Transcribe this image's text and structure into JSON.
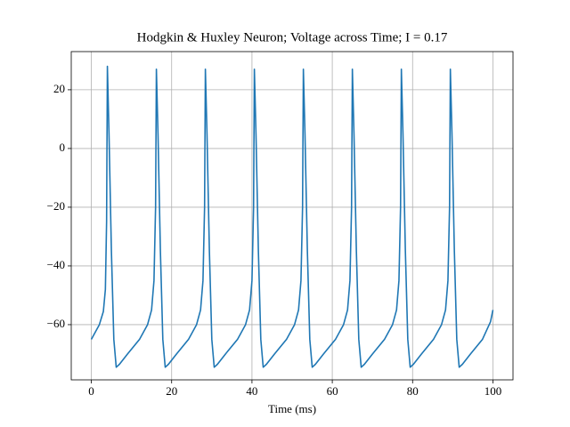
{
  "chart_data": {
    "type": "line",
    "title": "Hodgkin & Huxley Neuron; Voltage across Time; I = 0.17",
    "xlabel": "Time (ms)",
    "color": "#1f77b4",
    "grid": true,
    "xlim": [
      -5,
      105
    ],
    "ylim": [
      -78.8,
      33
    ],
    "xticks": [
      0,
      20,
      40,
      60,
      80,
      100
    ],
    "yticks": [
      {
        "value": -60,
        "label": "−60"
      },
      {
        "value": -40,
        "label": "−40"
      },
      {
        "value": -20,
        "label": "−20"
      },
      0,
      20
    ],
    "x": [
      0,
      1,
      2,
      3,
      3.5,
      3.8,
      4.0,
      4.4,
      5.0,
      5.6,
      6.2,
      7.0,
      9.0,
      12.0,
      14.0,
      15.0,
      15.6,
      16.0,
      16.2,
      16.6,
      17.2,
      17.8,
      18.4,
      19.2,
      21.2,
      24.2,
      26.2,
      27.2,
      27.8,
      28.2,
      28.4,
      28.8,
      29.4,
      30,
      30.6,
      31.4,
      33.4,
      36.4,
      38.4,
      39.4,
      40,
      40.4,
      40.6,
      41,
      41.6,
      42.2,
      42.8,
      43.6,
      45.6,
      48.6,
      50.6,
      51.6,
      52.2,
      52.6,
      52.8,
      53.2,
      53.8,
      54.4,
      55,
      55.8,
      57.8,
      60.8,
      62.8,
      63.8,
      64.4,
      64.8,
      65,
      65.4,
      66,
      66.6,
      67.2,
      68,
      70,
      73,
      75,
      76,
      76.6,
      77,
      77.2,
      77.6,
      78.2,
      78.8,
      79.4,
      80.2,
      82.2,
      85.2,
      87.2,
      88.2,
      88.8,
      89.2,
      89.4,
      89.8,
      90.4,
      91,
      91.6,
      92.4,
      94.4,
      97.4,
      99.4,
      100
    ],
    "values": [
      -65,
      -62.5,
      -60,
      -55.5,
      -48,
      -25,
      28,
      5,
      -35,
      -65,
      -74.5,
      -73.5,
      -70,
      -65,
      -60,
      -55,
      -45,
      -20,
      27,
      5,
      -35,
      -65,
      -74.5,
      -73.5,
      -70,
      -65,
      -60,
      -55,
      -45,
      -20,
      27,
      5,
      -35,
      -65,
      -74.5,
      -73.5,
      -70,
      -65,
      -60,
      -55,
      -45,
      -20,
      27,
      5,
      -35,
      -65,
      -74.5,
      -73.5,
      -70,
      -65,
      -60,
      -55,
      -45,
      -20,
      27,
      5,
      -35,
      -65,
      -74.5,
      -73.5,
      -70,
      -65,
      -60,
      -55,
      -45,
      -20,
      27,
      5,
      -35,
      -65,
      -74.5,
      -73.5,
      -70,
      -65,
      -60,
      -55,
      -45,
      -20,
      27,
      5,
      -35,
      -65,
      -74.5,
      -73.5,
      -70,
      -65,
      -60,
      -55,
      -45,
      -20,
      27,
      5,
      -35,
      -65,
      -74.5,
      -73.5,
      -70,
      -65,
      -59,
      -55
    ]
  }
}
